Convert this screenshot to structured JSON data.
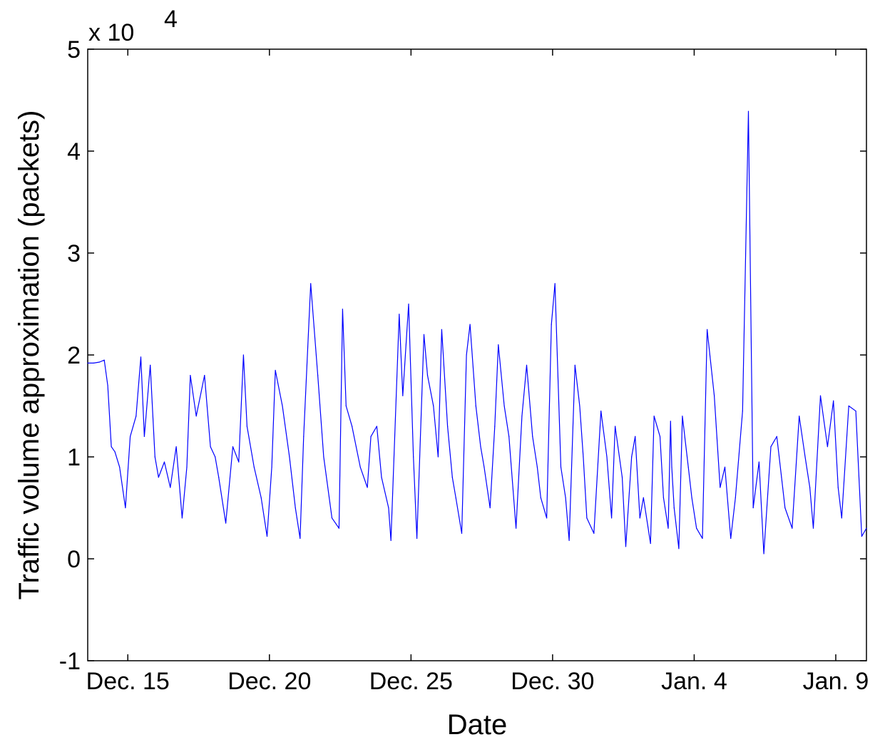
{
  "chart_data": {
    "type": "line",
    "title": "",
    "xlabel": "Date",
    "ylabel": "Traffic volume approximation (packets)",
    "y_exponent_label": "x 10",
    "y_exponent_power": "4",
    "y_scale_factor": 10000,
    "ylim": [
      -10000,
      50000
    ],
    "yticks": [
      -10000,
      0,
      10000,
      20000,
      30000,
      40000,
      50000
    ],
    "ytick_labels": [
      "-1",
      "0",
      "1",
      "2",
      "3",
      "4",
      "5"
    ],
    "xlim": [
      "Dec. 13 2pm",
      "Jan. 10 2am"
    ],
    "xticks": [
      "Dec. 15",
      "Dec. 20",
      "Dec. 25",
      "Dec. 30",
      "Jan. 4",
      "Jan. 9"
    ],
    "grid": false,
    "line_color": "#0000ff",
    "series": [
      {
        "name": "",
        "x": [
          "Dec. 13 2pm",
          "Dec. 13 7pm",
          "Dec. 14 12am",
          "Dec. 14 4am",
          "Dec. 14 7am",
          "Dec. 14 10am",
          "Dec. 14 1pm",
          "Dec. 14 5pm",
          "Dec. 14 10pm",
          "Dec. 15 2am",
          "Dec. 15 7am",
          "Dec. 15 11am",
          "Dec. 15 2pm",
          "Dec. 15 7pm",
          "Dec. 15 11pm",
          "Dec. 16 2am",
          "Dec. 16 7am",
          "Dec. 16 12pm",
          "Dec. 16 5pm",
          "Dec. 16 10pm",
          "Dec. 17 2am",
          "Dec. 17 5am",
          "Dec. 17 10am",
          "Dec. 17 5pm",
          "Dec. 17 10pm",
          "Dec. 18 2am",
          "Dec. 18 5am",
          "Dec. 18 11am",
          "Dec. 18 5pm",
          "Dec. 18 10pm",
          "Dec. 19 2am",
          "Dec. 19 5am",
          "Dec. 19 11am",
          "Dec. 19 5pm",
          "Dec. 19 10pm",
          "Dec. 20 2am",
          "Dec. 20 5am",
          "Dec. 20 11am",
          "Dec. 20 5pm",
          "Dec. 20 10pm",
          "Dec. 21 2am",
          "Dec. 21 5am",
          "Dec. 21 11am",
          "Dec. 21 5pm",
          "Dec. 21 10pm",
          "Dec. 22 5am",
          "Dec. 22 11am",
          "Dec. 22 2pm",
          "Dec. 22 5pm",
          "Dec. 22 10pm",
          "Dec. 23 5am",
          "Dec. 23 11am",
          "Dec. 23 2pm",
          "Dec. 23 7pm",
          "Dec. 23 11pm",
          "Dec. 24 5am",
          "Dec. 24 7am",
          "Dec. 24 2pm",
          "Dec. 24 5pm",
          "Dec. 24 10pm",
          "Dec. 25 2am",
          "Dec. 25 5am",
          "Dec. 25 11am",
          "Dec. 25 2pm",
          "Dec. 25 7pm",
          "Dec. 25 11pm",
          "Dec. 26 2am",
          "Dec. 26 7am",
          "Dec. 26 11am",
          "Dec. 26 2pm",
          "Dec. 26 7pm",
          "Dec. 26 11pm",
          "Dec. 27 2am",
          "Dec. 27 7am",
          "Dec. 27 11am",
          "Dec. 27 2pm",
          "Dec. 27 7pm",
          "Dec. 27 11pm",
          "Dec. 28 2am",
          "Dec. 28 7am",
          "Dec. 28 11am",
          "Dec. 28 5pm",
          "Dec. 28 10pm",
          "Dec. 29 2am",
          "Dec. 29 7am",
          "Dec. 29 11am",
          "Dec. 29 2pm",
          "Dec. 29 7pm",
          "Dec. 29 11pm",
          "Dec. 30 2am",
          "Dec. 30 7am",
          "Dec. 30 11am",
          "Dec. 30 2pm",
          "Dec. 30 7pm",
          "Dec. 30 11pm",
          "Dec. 31 2am",
          "Dec. 31 5am",
          "Dec. 31 11am",
          "Dec. 31 5pm",
          "Dec. 31 10pm",
          "Jan. 1 2am",
          "Jan. 1 5am",
          "Jan. 1 11am",
          "Jan. 1 2pm",
          "Jan. 1 7pm",
          "Jan. 1 10pm",
          "Jan. 2 2am",
          "Jan. 2 5am",
          "Jan. 2 11am",
          "Jan. 2 2pm",
          "Jan. 2 7pm",
          "Jan. 2 10pm",
          "Jan. 3 2am",
          "Jan. 3 4am",
          "Jan. 3 5am",
          "Jan. 3 7am",
          "Jan. 3 11am",
          "Jan. 3 2pm",
          "Jan. 3 7pm",
          "Jan. 3 10pm",
          "Jan. 4 2am",
          "Jan. 4 7am",
          "Jan. 4 11am",
          "Jan. 4 5pm",
          "Jan. 4 10pm",
          "Jan. 5 2am",
          "Jan. 5 7am",
          "Jan. 5 11am",
          "Jan. 5 5pm",
          "Jan. 5 10pm",
          "Jan. 6 2am",
          "Jan. 6 7am",
          "Jan. 6 11am",
          "Jan. 6 5pm",
          "Jan. 6 10pm",
          "Jan. 7 2am",
          "Jan. 7 5am",
          "Jan. 7 11am",
          "Jan. 7 5pm",
          "Jan. 7 10pm",
          "Jan. 8 2am",
          "Jan. 8 5am",
          "Jan. 8 11am",
          "Jan. 8 5pm",
          "Jan. 8 10pm",
          "Jan. 9 2am",
          "Jan. 9 5am",
          "Jan. 9 11am",
          "Jan. 9 5pm",
          "Jan. 9 10pm",
          "Jan. 10 2am"
        ],
        "y": [
          19200,
          19200,
          19300,
          19500,
          17000,
          11000,
          10500,
          9000,
          5000,
          12000,
          14000,
          19800,
          12000,
          19000,
          10000,
          8000,
          9500,
          7000,
          11000,
          4000,
          9000,
          18000,
          14000,
          18000,
          11000,
          10000,
          8000,
          3500,
          11000,
          9500,
          20000,
          13000,
          9000,
          6000,
          2200,
          9000,
          18500,
          15000,
          10000,
          5000,
          2000,
          12000,
          27000,
          18000,
          10000,
          4000,
          3000,
          24500,
          15000,
          13000,
          9000,
          7000,
          12000,
          13000,
          8000,
          5000,
          1800,
          24000,
          16000,
          25000,
          10000,
          2000,
          22000,
          18000,
          15000,
          10000,
          22500,
          13000,
          8000,
          6000,
          2500,
          20000,
          23000,
          15000,
          11000,
          9000,
          5000,
          13000,
          21000,
          15000,
          12000,
          3000,
          14000,
          19000,
          12000,
          9000,
          6000,
          4000,
          23000,
          27000,
          9000,
          6000,
          1800,
          19000,
          15000,
          10000,
          4000,
          2500,
          14500,
          10000,
          4000,
          13000,
          8000,
          1200,
          10000,
          12000,
          4000,
          6000,
          1500,
          14000,
          12000,
          6000,
          3000,
          13500,
          9000,
          5000,
          1000,
          14000,
          9000,
          6000,
          3000,
          2000,
          22500,
          16000,
          7000,
          9000,
          2000,
          6000,
          14500,
          43900,
          5000,
          9500,
          500,
          11000,
          12000,
          8000,
          5000,
          3000,
          14000,
          10000,
          7000,
          3000,
          16000,
          11000,
          15500,
          7000,
          4000,
          15000,
          14500,
          2200,
          3000
        ]
      }
    ]
  }
}
